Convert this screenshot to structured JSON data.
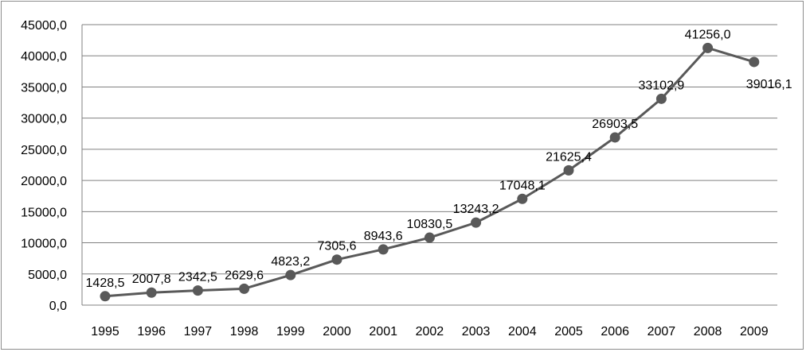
{
  "chart_data": {
    "type": "line",
    "title": "",
    "xlabel": "",
    "ylabel": "",
    "ylim": [
      0,
      45000
    ],
    "y_tick_step": 5000,
    "y_tick_labels": [
      "0,0",
      "5000,0",
      "10000,0",
      "15000,0",
      "20000,0",
      "25000,0",
      "30000,0",
      "35000,0",
      "40000,0",
      "45000,0"
    ],
    "grid": true,
    "legend": "none",
    "categories": [
      "1995",
      "1996",
      "1997",
      "1998",
      "1999",
      "2000",
      "2001",
      "2002",
      "2003",
      "2004",
      "2005",
      "2006",
      "2007",
      "2008",
      "2009"
    ],
    "series": [
      {
        "values": [
          1428.5,
          2007.8,
          2342.5,
          2629.6,
          4823.2,
          7305.6,
          8943.6,
          10830.5,
          13243.2,
          17048.1,
          21625.4,
          26903.5,
          33102.9,
          41256.0,
          39016.1
        ],
        "labels": [
          "1428,5",
          "2007,8",
          "2342,5",
          "2629,6",
          "4823,2",
          "7305,6",
          "8943,6",
          "10830,5",
          "13243,2",
          "17048,1",
          "21625,4",
          "26903,5",
          "33102,9",
          "41256,0",
          "39016,1"
        ]
      }
    ],
    "colors": {
      "line": "#595959",
      "marker": "#595959",
      "grid": "#808080",
      "axis": "#808080"
    }
  }
}
